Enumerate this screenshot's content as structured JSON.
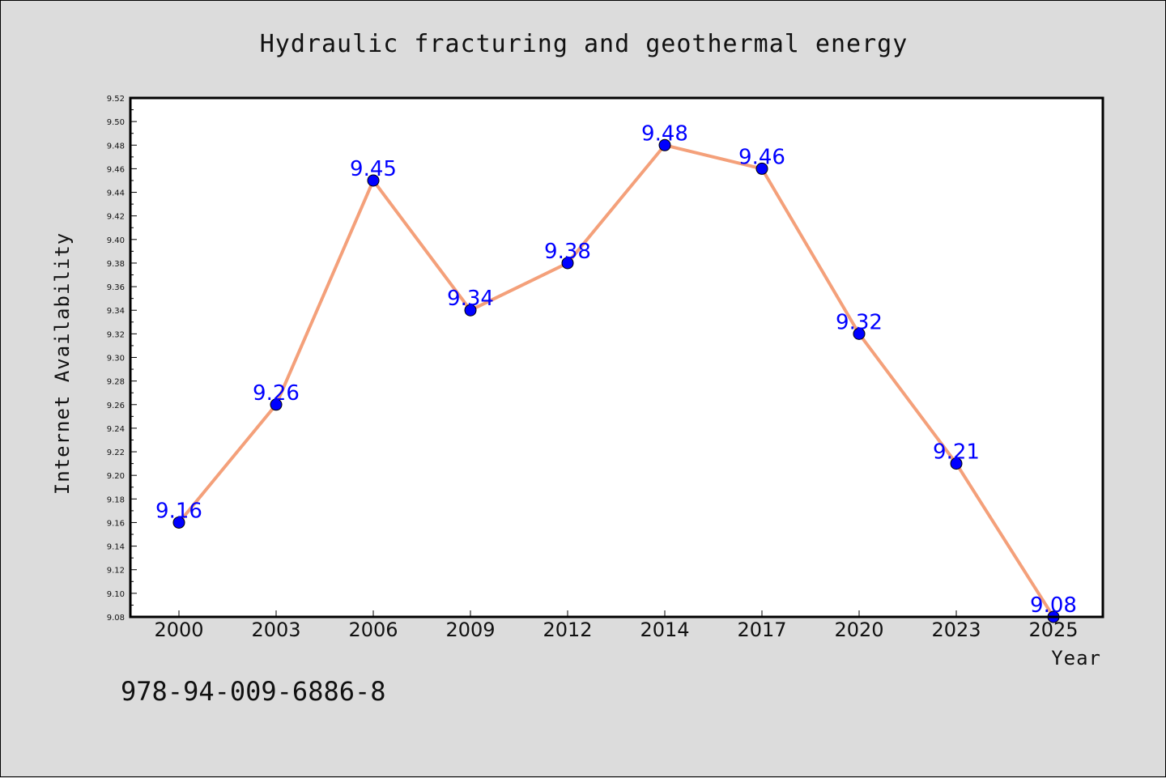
{
  "chart_data": {
    "type": "line",
    "title": "Hydraulic fracturing and geothermal energy",
    "xlabel": "Year",
    "ylabel": "Internet Availability",
    "categories": [
      "2000",
      "2003",
      "2006",
      "2009",
      "2012",
      "2014",
      "2017",
      "2020",
      "2023",
      "2025"
    ],
    "series": [
      {
        "values": [
          9.16,
          9.26,
          9.45,
          9.34,
          9.38,
          9.48,
          9.46,
          9.32,
          9.21,
          9.08
        ],
        "data_labels": [
          "9.16",
          "9.26",
          "9.45",
          "9.34",
          "9.38",
          "9.48",
          "9.46",
          "9.32",
          "9.21",
          "9.08"
        ],
        "line_color": "#f4a07a",
        "marker_color": "#0000ff"
      }
    ],
    "ylim": [
      9.08,
      9.52
    ],
    "yticks": [
      "9.08",
      "9.10",
      "9.12",
      "9.14",
      "9.16",
      "9.18",
      "9.20",
      "9.22",
      "9.24",
      "9.26",
      "9.28",
      "9.30",
      "9.32",
      "9.34",
      "9.36",
      "9.38",
      "9.40",
      "9.42",
      "9.44",
      "9.46",
      "9.48",
      "9.50",
      "9.52"
    ],
    "grid": false,
    "annotation": "978-94-009-6886-8",
    "colors": {
      "background": "#dcdcdc",
      "plot_background": "#ffffff",
      "label_text": "#0000ff"
    }
  }
}
